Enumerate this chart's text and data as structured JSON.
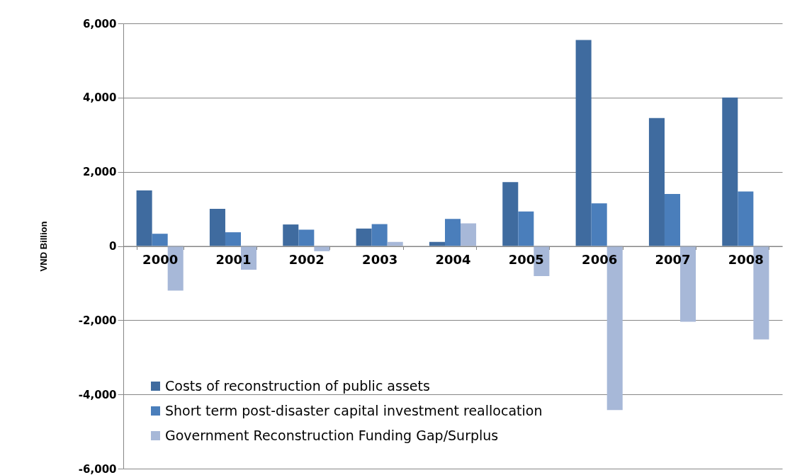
{
  "chart_data": {
    "type": "bar",
    "ylabel": "VND Billion",
    "categories": [
      "2000",
      "2001",
      "2002",
      "2003",
      "2004",
      "2005",
      "2006",
      "2007",
      "2008"
    ],
    "series": [
      {
        "name": "Costs of reconstruction of public assets",
        "color": "#3f6b9f",
        "values": [
          1500,
          1000,
          580,
          470,
          110,
          1720,
          5550,
          3450,
          4000
        ]
      },
      {
        "name": "Short term post-disaster capital investment reallocation",
        "color": "#4a7ebb",
        "values": [
          330,
          370,
          440,
          590,
          730,
          930,
          1150,
          1400,
          1470
        ]
      },
      {
        "name": "Government Reconstruction Funding Gap/Surplus",
        "color": "#a7b8d8",
        "values": [
          -1200,
          -640,
          -140,
          110,
          610,
          -810,
          -4420,
          -2040,
          -2520
        ]
      }
    ],
    "ylim": [
      -6000,
      6000
    ],
    "yticks": [
      {
        "value": -6000,
        "label": "-6,000"
      },
      {
        "value": -4000,
        "label": "-4,000"
      },
      {
        "value": -2000,
        "label": "-2,000"
      },
      0,
      {
        "value": 2000,
        "label": "2,000"
      },
      {
        "value": 4000,
        "label": "4,000"
      },
      {
        "value": 6000,
        "label": "6,000"
      }
    ],
    "grid": "y",
    "legend": "bottom left"
  }
}
